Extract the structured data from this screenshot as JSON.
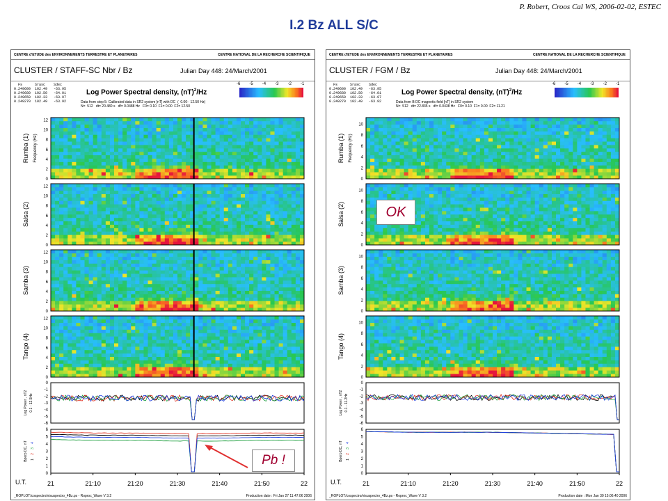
{
  "credit": "P. Robert, Croos Cal WS, 2006-02-02, ESTEC",
  "slide_title": "I.2 Bz ALL S/C",
  "colors": {
    "title": "#1f3b9a",
    "note": "#a00030",
    "arrow": "#e03030"
  },
  "panels": [
    {
      "strip_left": "CENTRE d'ETUDE des ENVIRONNEMENTS TERRESTRE ET PLANETAIRES",
      "strip_right": "CENTRE NATIONAL DE LA RECHERCHE SCIENTIFIQUE",
      "title": "CLUSTER / STAFF-SC Nbr / Bz",
      "date": "Julian Day  448:  24/March/2001",
      "psd_label": "Log Power Spectral density, (nT)",
      "psd_unit": "/Hz",
      "sc_table": "  Fs      Srasc    Sdec\n0.249600  102.49   -63.95\n0.249680  102.50   -64.01\n0.249650  102.33   -63.97\n0.249270  102.49   -63.92",
      "info_line1": "Data from step 5: Calibrated data in SR2 system [nT] with DC  (  0.00-  12.50 Hz)",
      "info_line2": "N=  512   dt= 20.480 s   df= 0.0488 Hz   F0= 0.10  F1= 0.00  F2= 12.50",
      "colorbar_ticks": [
        "-6",
        "-5",
        "-4",
        "-3",
        "-2",
        "-1"
      ],
      "spacecraft": [
        "Rumba  (1)",
        "Salsa  (2)",
        "Samba  (3)",
        "Tango  (4)"
      ],
      "freq_axis_label": "Frequency (Hz)",
      "freq_ticks": [
        "0",
        "2",
        "4",
        "6",
        "8",
        "10",
        "12"
      ],
      "power_label": "Log Power , nT2",
      "power_range": "0.1 - 12.5Hz",
      "power_ticks": [
        "0",
        "-1",
        "-2",
        "-3",
        "-4",
        "-5",
        "-6"
      ],
      "dc_label": "Bperp DC, nT",
      "dc_sc_labels": [
        "1",
        "2",
        "3",
        "4"
      ],
      "dc_ticks": [
        "6",
        "5",
        "4",
        "3",
        "2",
        "1",
        "0"
      ],
      "time_label": "U.T.",
      "time_ticks": [
        "21",
        "21:10",
        "21:20",
        "21:30",
        "21:40",
        "21:50",
        "22"
      ],
      "footer_left": "_ROPLOT/cospectro/visuspectro_4Bz.ps  -  Roproc_Wave V 3.2",
      "footer_right": "Production date : Fri Jan 27 11:47:06 2006",
      "note_text": "Pb !"
    },
    {
      "strip_left": "CENTRE d'ETUDE des ENVIRONNEMENTS TERRESTRE ET PLANETAIRES",
      "strip_right": "CENTRE NATIONAL DE LA RECHERCHE SCIENTIFIQUE",
      "title": "CLUSTER / FGM / Bz",
      "date": "Julian Day  448:  24/March/2001",
      "psd_label": "Log Power Spectral density, (nT)",
      "psd_unit": "/Hz",
      "sc_table": "  Fs      Srasc    Sdec\n0.249600  102.49   -63.95\n0.249680  102.50   -64.01\n0.249650  102.33   -63.97\n0.249270  102.49   -63.92",
      "info_line1": "Data from B DC magnetic field [nT] in SR2 system",
      "info_line2": "N=  512   dt= 22.835 s   df= 0.0438 Hz   F0= 0.10  F1= 0.00  F2= 11.21",
      "colorbar_ticks": [
        "-6",
        "-5",
        "-4",
        "-3",
        "-2",
        "-1"
      ],
      "spacecraft": [
        "Rumba  (1)",
        "Salsa  (2)",
        "Samba  (3)",
        "Tango  (4)"
      ],
      "freq_axis_label": "Frequency (Hz)",
      "freq_ticks": [
        "0",
        "2",
        "4",
        "6",
        "8",
        "10"
      ],
      "power_label": "Log Power , nT2",
      "power_range": "0.1 - 11.2Hz",
      "power_ticks": [
        "0",
        "-1",
        "-2",
        "-3",
        "-4",
        "-5",
        "-6"
      ],
      "dc_label": "Bperp DC, nT",
      "dc_sc_labels": [
        "1",
        "2",
        "3",
        "4"
      ],
      "dc_ticks": [
        "6",
        "5",
        "4",
        "3",
        "2",
        "1",
        "0"
      ],
      "time_label": "U.T.",
      "time_ticks": [
        "21",
        "21:10",
        "21:20",
        "21:30",
        "21:40",
        "21:50",
        "22"
      ],
      "footer_left": "_ROPLOT/cospectro/visuspectro_4Bz.ps  -  Roproc_Wave V 3.2",
      "footer_right": "Production date : Mon Jan 30 15:06:40 2006",
      "note_text": "OK"
    }
  ],
  "chart_data": [
    {
      "type": "heatmap",
      "title": "CLUSTER / STAFF-SC Nbr / Bz",
      "subtitle": "Log Power Spectral density, (nT)2/Hz",
      "xlabel": "U.T.",
      "x_ticks": [
        "21",
        "21:10",
        "21:20",
        "21:30",
        "21:40",
        "21:50",
        "22"
      ],
      "ylabel": "Frequency (Hz)",
      "ylim": [
        0,
        12.5
      ],
      "color_range": [
        -6,
        -1
      ],
      "series": [
        {
          "name": "Rumba (1)"
        },
        {
          "name": "Salsa (2)"
        },
        {
          "name": "Samba (3)"
        },
        {
          "name": "Tango (4)"
        }
      ],
      "enhancement_window_ut": [
        "21:20",
        "21:34"
      ],
      "enhancement_freq_hz": [
        0,
        3
      ],
      "data_gap_ut": "21:34"
    },
    {
      "type": "line",
      "title": "Log Power , nT2 0.1 - 12.5Hz",
      "x_ticks": [
        "21",
        "21:10",
        "21:20",
        "21:30",
        "21:40",
        "21:50",
        "22"
      ],
      "ylim": [
        -6,
        0
      ],
      "series": [
        {
          "name": "1"
        },
        {
          "name": "2"
        },
        {
          "name": "3"
        },
        {
          "name": "4"
        }
      ],
      "typical_level": -2.3,
      "dip_at": "21:34",
      "dip_min": -5.5
    },
    {
      "type": "line",
      "title": "Bperp DC, nT",
      "x_ticks": [
        "21",
        "21:10",
        "21:20",
        "21:30",
        "21:40",
        "21:50",
        "22"
      ],
      "ylim": [
        0,
        6
      ],
      "series": [
        {
          "name": "1",
          "values_approx": [
            5.3,
            5.2,
            5.2,
            5.1,
            5.1,
            5.2,
            5.2
          ]
        },
        {
          "name": "2",
          "values_approx": [
            5.6,
            5.5,
            5.5,
            5.4,
            5.4,
            5.5,
            5.5
          ]
        },
        {
          "name": "3",
          "values_approx": [
            4.6,
            4.5,
            4.5,
            4.4,
            4.4,
            4.5,
            4.5
          ]
        },
        {
          "name": "4",
          "values_approx": [
            5.0,
            4.9,
            4.9,
            4.8,
            4.8,
            4.9,
            4.9
          ]
        }
      ],
      "dip_at": "21:34",
      "dip_min": 0.2
    },
    {
      "type": "heatmap",
      "title": "CLUSTER / FGM / Bz",
      "subtitle": "Log Power Spectral density, (nT)2/Hz",
      "xlabel": "U.T.",
      "x_ticks": [
        "21",
        "21:10",
        "21:20",
        "21:30",
        "21:40",
        "21:50",
        "22"
      ],
      "ylabel": "Frequency (Hz)",
      "ylim": [
        0,
        11.2
      ],
      "color_range": [
        -6,
        -1
      ],
      "series": [
        {
          "name": "Rumba (1)"
        },
        {
          "name": "Salsa (2)"
        },
        {
          "name": "Samba (3)"
        },
        {
          "name": "Tango (4)"
        }
      ],
      "enhancement_window_ut": [
        "21:20",
        "21:34"
      ],
      "enhancement_freq_hz": [
        0,
        3
      ]
    },
    {
      "type": "line",
      "title": "Log Power , nT2 0.1 - 11.2Hz",
      "x_ticks": [
        "21",
        "21:10",
        "21:20",
        "21:30",
        "21:40",
        "21:50",
        "22"
      ],
      "ylim": [
        -6,
        0
      ],
      "series": [
        {
          "name": "1"
        },
        {
          "name": "2"
        },
        {
          "name": "3"
        },
        {
          "name": "4"
        }
      ],
      "typical_level": -2.2
    },
    {
      "type": "line",
      "title": "Bperp DC, nT",
      "x_ticks": [
        "21",
        "21:10",
        "21:20",
        "21:30",
        "21:40",
        "21:50",
        "22"
      ],
      "ylim": [
        0,
        6
      ],
      "series": [
        {
          "name": "1",
          "values_approx": [
            5.7,
            5.6,
            5.6,
            5.6,
            5.5,
            5.4,
            5.3
          ]
        },
        {
          "name": "2",
          "values_approx": [
            5.7,
            5.6,
            5.6,
            5.6,
            5.5,
            5.4,
            5.3
          ]
        },
        {
          "name": "3",
          "values_approx": [
            5.7,
            5.6,
            5.6,
            5.6,
            5.5,
            5.4,
            5.3
          ]
        },
        {
          "name": "4",
          "values_approx": [
            5.7,
            5.6,
            5.6,
            5.6,
            5.5,
            5.4,
            5.3
          ]
        }
      ],
      "drop_at": "22",
      "drop_min": 0.2
    }
  ]
}
